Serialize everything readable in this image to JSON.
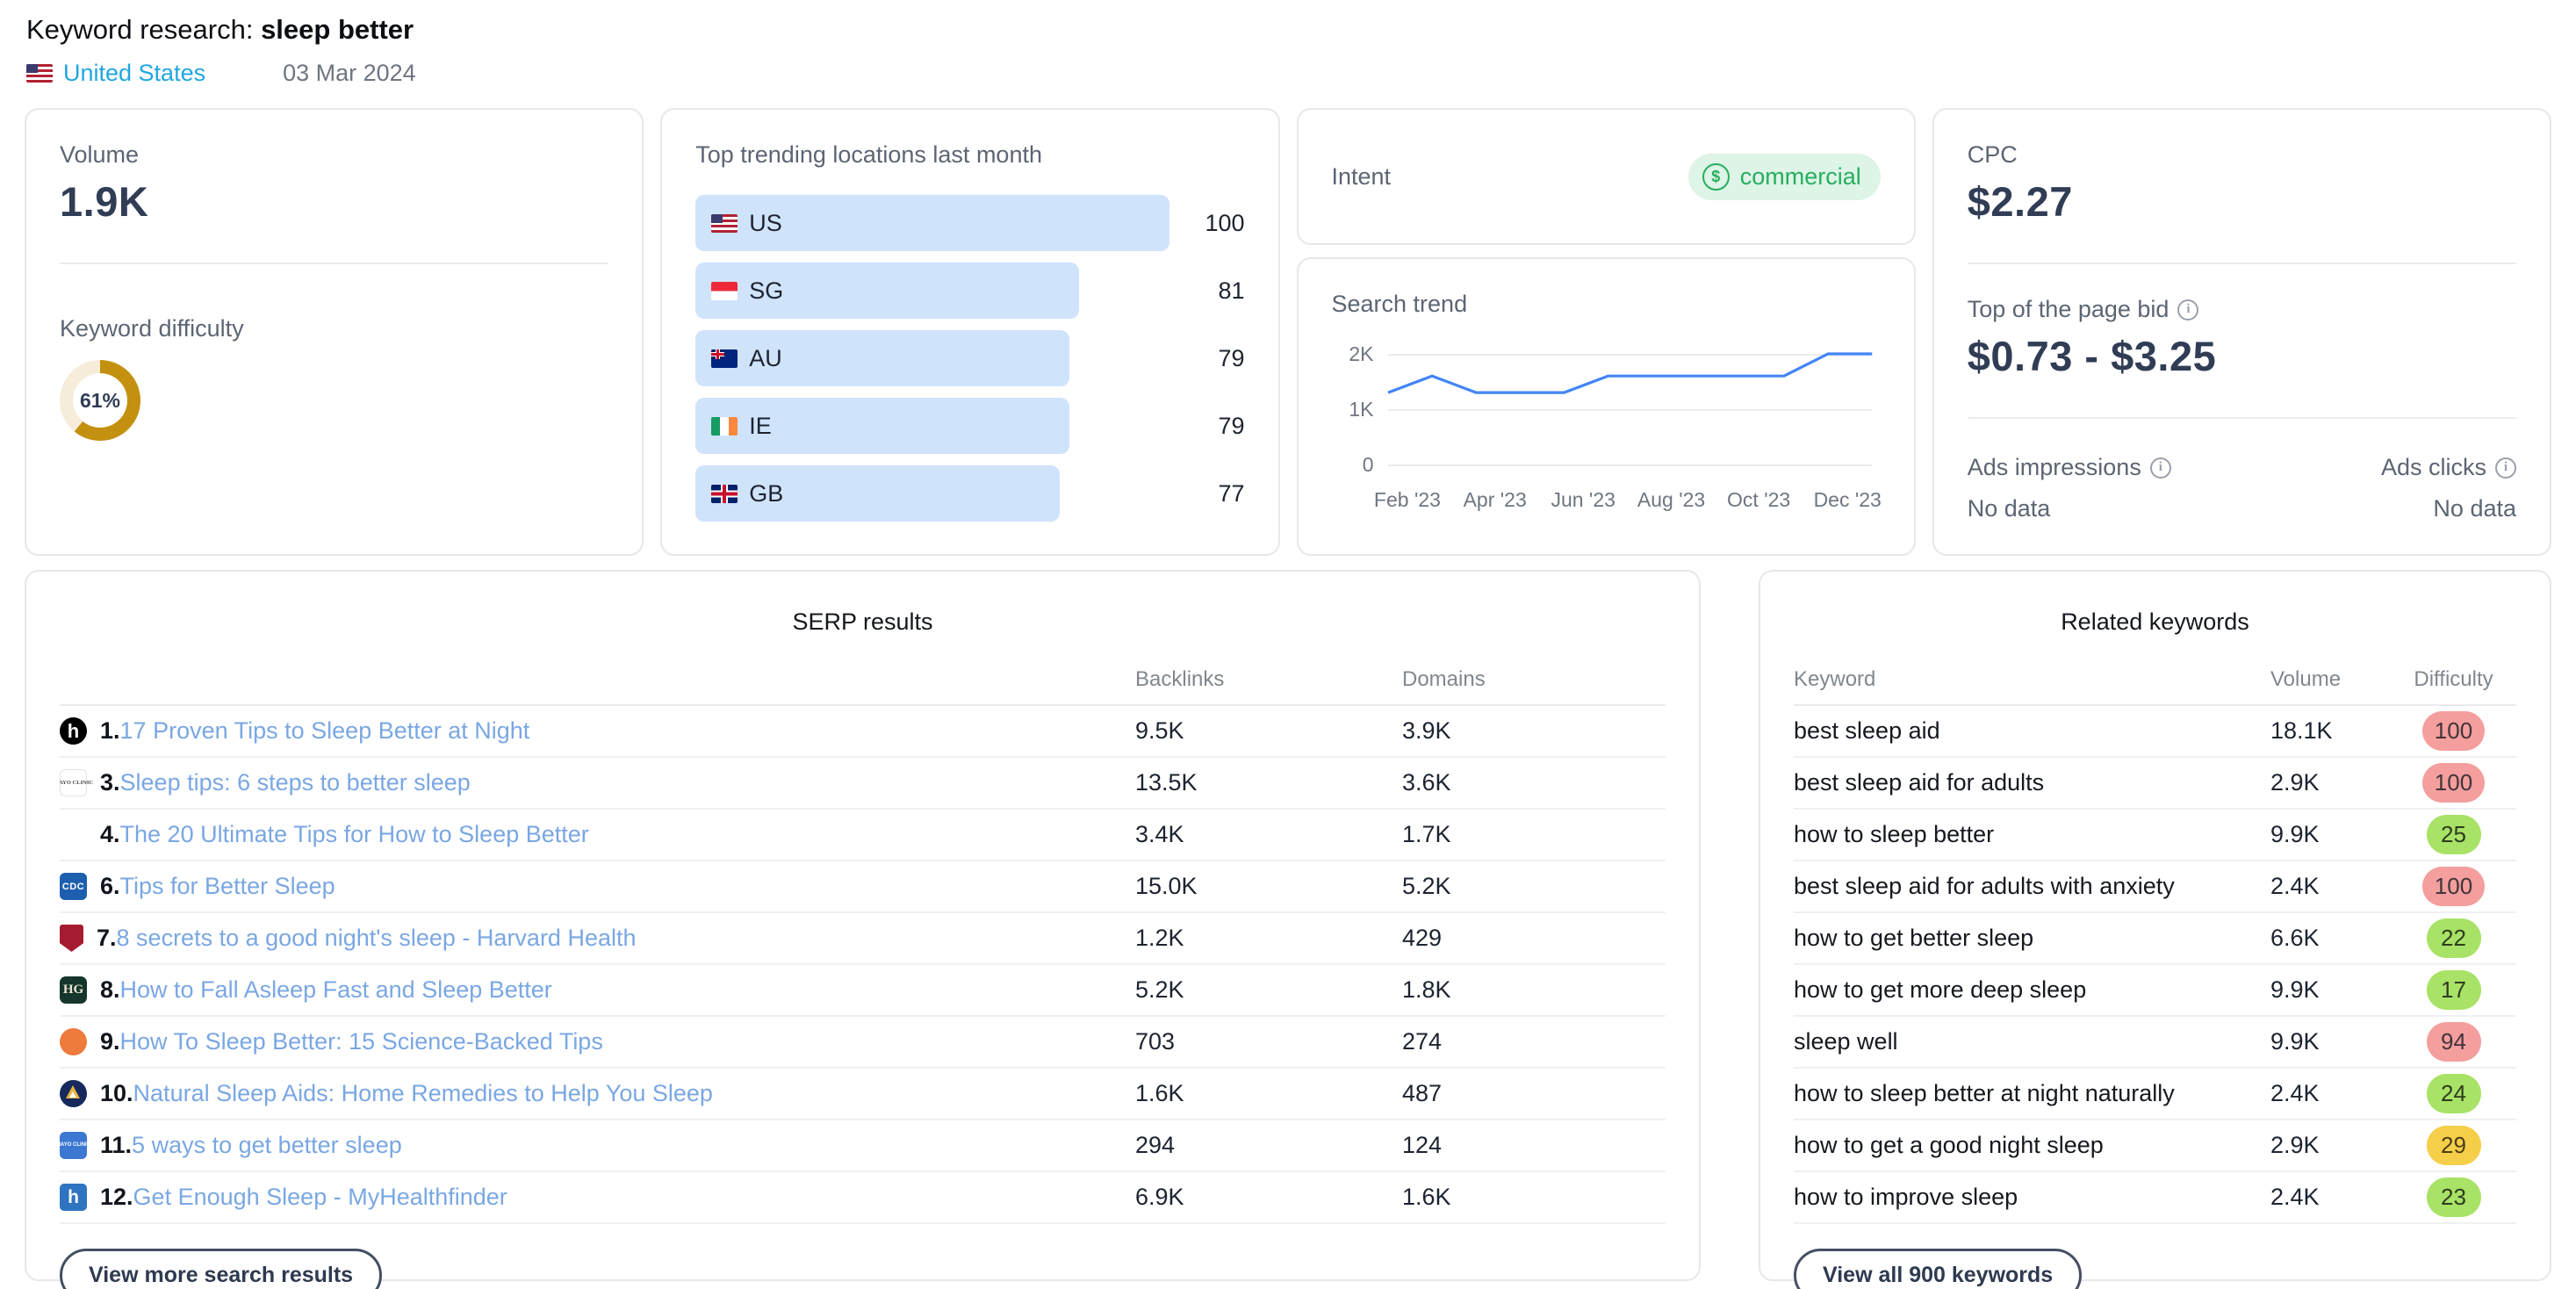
{
  "header": {
    "title_prefix": "Keyword research: ",
    "keyword": "sleep better",
    "country": "United States",
    "date": "03 Mar 2024"
  },
  "volume_card": {
    "volume_label": "Volume",
    "volume_value": "1.9K",
    "difficulty_label": "Keyword difficulty",
    "difficulty_percent": 61,
    "difficulty_display": "61%",
    "difficulty_colors": {
      "fill": "#c3900f",
      "track": "#f5ecd9"
    }
  },
  "locations_card": {
    "title": "Top trending locations last month",
    "bars": [
      {
        "code": "US",
        "value": 100
      },
      {
        "code": "SG",
        "value": 81
      },
      {
        "code": "AU",
        "value": 79
      },
      {
        "code": "IE",
        "value": 79
      },
      {
        "code": "GB",
        "value": 77
      }
    ],
    "bar_color": "#cfe3fb"
  },
  "intent_card": {
    "label": "Intent",
    "badge_text": "commercial",
    "badge_icon": "dollar-circle-icon",
    "badge_colors": {
      "text": "#27ae60",
      "background": "#ddf4e6"
    }
  },
  "trend_card": {
    "title": "Search trend"
  },
  "cpc_card": {
    "label": "CPC",
    "value": "$2.27",
    "top_bid_label": "Top of the page bid",
    "top_bid_value": "$0.73 - $3.25",
    "ads_impressions_label": "Ads impressions",
    "ads_impressions_value": "No data",
    "ads_clicks_label": "Ads clicks",
    "ads_clicks_value": "No data"
  },
  "serp_card": {
    "title": "SERP results",
    "col_backlinks": "Backlinks",
    "col_domains": "Domains",
    "rows": [
      {
        "rank": "1.",
        "title": "17 Proven Tips to Sleep Better at Night",
        "backlinks": "9.5K",
        "domains": "3.9K",
        "icon_text": "h"
      },
      {
        "rank": "3.",
        "title": "Sleep tips: 6 steps to better sleep",
        "backlinks": "13.5K",
        "domains": "3.6K",
        "icon_text": "MAYO CLINIC"
      },
      {
        "rank": "4.",
        "title": "The 20 Ultimate Tips for How to Sleep Better",
        "backlinks": "3.4K",
        "domains": "1.7K",
        "icon_text": ""
      },
      {
        "rank": "6.",
        "title": "Tips for Better Sleep",
        "backlinks": "15.0K",
        "domains": "5.2K",
        "icon_text": "CDC"
      },
      {
        "rank": "7.",
        "title": "8 secrets to a good night's sleep - Harvard Health",
        "backlinks": "1.2K",
        "domains": "429",
        "icon_text": ""
      },
      {
        "rank": "8.",
        "title": "How to Fall Asleep Fast and Sleep Better",
        "backlinks": "5.2K",
        "domains": "1.8K",
        "icon_text": "HG"
      },
      {
        "rank": "9.",
        "title": "How To Sleep Better: 15 Science-Backed Tips",
        "backlinks": "703",
        "domains": "274",
        "icon_text": ""
      },
      {
        "rank": "10.",
        "title": "Natural Sleep Aids: Home Remedies to Help You Sleep",
        "backlinks": "1.6K",
        "domains": "487",
        "icon_text": ""
      },
      {
        "rank": "11.",
        "title": "5 ways to get better sleep",
        "backlinks": "294",
        "domains": "124",
        "icon_text": "MAYO CLINIC"
      },
      {
        "rank": "12.",
        "title": "Get Enough Sleep - MyHealthfinder",
        "backlinks": "6.9K",
        "domains": "1.6K",
        "icon_text": "h"
      }
    ],
    "button_label": "View more search results"
  },
  "related_card": {
    "title": "Related keywords",
    "col_keyword": "Keyword",
    "col_volume": "Volume",
    "col_difficulty": "Difficulty",
    "rows": [
      {
        "keyword": "best sleep aid",
        "volume": "18.1K",
        "difficulty": "100",
        "level": "high"
      },
      {
        "keyword": "best sleep aid for adults",
        "volume": "2.9K",
        "difficulty": "100",
        "level": "high"
      },
      {
        "keyword": "how to sleep better",
        "volume": "9.9K",
        "difficulty": "25",
        "level": "low"
      },
      {
        "keyword": "best sleep aid for adults with anxiety",
        "volume": "2.4K",
        "difficulty": "100",
        "level": "high"
      },
      {
        "keyword": "how to get better sleep",
        "volume": "6.6K",
        "difficulty": "22",
        "level": "low"
      },
      {
        "keyword": "how to get more deep sleep",
        "volume": "9.9K",
        "difficulty": "17",
        "level": "low"
      },
      {
        "keyword": "sleep well",
        "volume": "9.9K",
        "difficulty": "94",
        "level": "high"
      },
      {
        "keyword": "how to sleep better at night naturally",
        "volume": "2.4K",
        "difficulty": "24",
        "level": "low"
      },
      {
        "keyword": "how to get a good night sleep",
        "volume": "2.9K",
        "difficulty": "29",
        "level": "medium"
      },
      {
        "keyword": "how to improve sleep",
        "volume": "2.4K",
        "difficulty": "23",
        "level": "low"
      }
    ],
    "button_label": "View all 900 keywords"
  },
  "chart_data": [
    {
      "type": "line",
      "title": "Search trend",
      "x": [
        "Feb '23",
        "Mar '23",
        "Apr '23",
        "May '23",
        "Jun '23",
        "Jul '23",
        "Aug '23",
        "Sep '23",
        "Oct '23",
        "Nov '23",
        "Dec '23",
        "Jan '24"
      ],
      "values": [
        1300,
        1600,
        1300,
        1300,
        1300,
        1600,
        1600,
        1600,
        1600,
        1600,
        2000,
        2000
      ],
      "x_tick_labels": [
        "Feb '23",
        "Apr '23",
        "Jun '23",
        "Aug '23",
        "Oct '23",
        "Dec '23"
      ],
      "y_ticks": [
        "0",
        "1K",
        "2K"
      ],
      "ylim": [
        0,
        2200
      ],
      "line_color": "#4285f4",
      "grid": true,
      "legend": "none"
    },
    {
      "type": "bar",
      "title": "Top trending locations last month",
      "orientation": "horizontal",
      "categories": [
        "US",
        "SG",
        "AU",
        "IE",
        "GB"
      ],
      "values": [
        100,
        81,
        79,
        79,
        77
      ],
      "xlim": [
        0,
        100
      ],
      "bar_color": "#cfe3fb"
    }
  ]
}
